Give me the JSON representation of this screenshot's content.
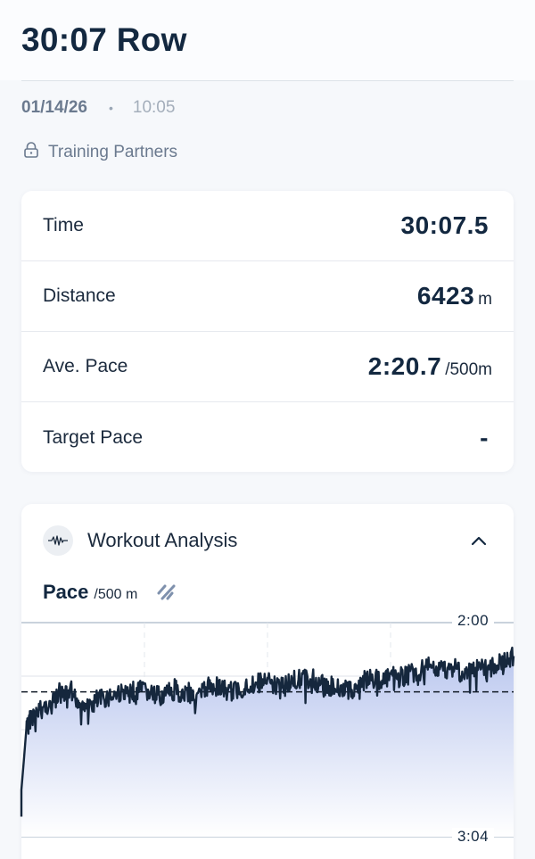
{
  "header": {
    "title": "30:07 Row",
    "date": "01/14/26",
    "separator": "•",
    "time": "10:05",
    "privacy_icon": "lock-icon",
    "privacy_label": "Training Partners"
  },
  "stats": [
    {
      "label": "Time",
      "value": "30:07.5",
      "unit": ""
    },
    {
      "label": "Distance",
      "value": "6423",
      "unit": "m"
    },
    {
      "label": "Ave. Pace",
      "value": "2:20.7",
      "unit": "/500m"
    },
    {
      "label": "Target Pace",
      "value": "-",
      "unit": ""
    }
  ],
  "analysis": {
    "icon": "waveform-icon",
    "title": "Workout Analysis",
    "collapse_icon": "chevron-up-icon",
    "metric_label": "Pace",
    "metric_unit": "/500 m",
    "toggle_icon": "split-toggle-icon"
  },
  "colors": {
    "primary_text": "#132840",
    "muted_text": "#6b7a8f",
    "line": "#15273d",
    "fill_top": "#b9c6ee",
    "fill_bottom": "#ffffff",
    "grid": "#dfe3ea"
  },
  "chart_data": {
    "type": "area",
    "title": "Pace /500 m",
    "xlabel": "",
    "ylabel": "Pace (/500m)",
    "y_axis_inverted": true,
    "y_tick_labels": [
      "2:00",
      "3:04"
    ],
    "ylim_seconds": [
      120,
      184
    ],
    "reference_line": {
      "label": "Ave. Pace",
      "value": "2:20.7",
      "seconds": 140.7,
      "style": "dashed"
    },
    "grid": {
      "horizontal": 5,
      "vertical_dashed": 3
    },
    "x_percent": [
      0,
      1,
      2,
      4,
      6,
      8,
      10,
      12,
      14,
      16,
      18,
      20,
      22,
      24,
      26,
      28,
      30,
      32,
      34,
      36,
      38,
      40,
      42,
      44,
      46,
      48,
      50,
      52,
      54,
      56,
      58,
      60,
      62,
      64,
      66,
      68,
      70,
      72,
      74,
      76,
      78,
      80,
      82,
      84,
      86,
      88,
      90,
      92,
      94,
      96,
      98,
      100
    ],
    "pace_seconds": [
      170,
      152,
      148,
      146,
      144,
      142,
      141,
      144,
      145,
      143,
      142,
      141,
      141,
      140,
      141,
      142,
      141,
      141,
      141,
      142,
      139,
      139,
      141,
      140,
      139,
      138,
      138,
      139,
      138,
      137,
      137,
      138,
      139,
      139,
      140,
      140,
      137,
      137,
      137,
      136,
      136,
      135,
      134,
      134,
      134,
      133,
      136,
      134,
      134,
      133,
      132,
      130
    ]
  }
}
